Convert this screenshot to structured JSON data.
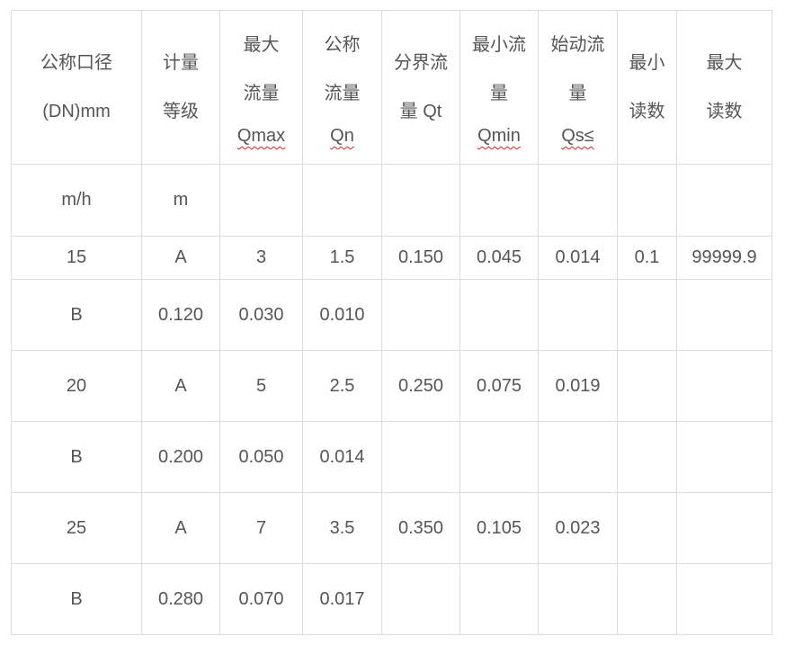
{
  "header": [
    {
      "lines": [
        "公称口径",
        "(DN)mm"
      ]
    },
    {
      "lines": [
        "计量",
        "等级"
      ]
    },
    {
      "lines": [
        "最大",
        "流量",
        "Qmax"
      ],
      "squiggle": 2
    },
    {
      "lines": [
        "公称",
        "流量",
        "Qn"
      ],
      "squiggle": 2
    },
    {
      "lines": [
        "分界流",
        "量 Qt"
      ]
    },
    {
      "lines": [
        "最小流",
        "量",
        "Qmin"
      ],
      "squiggle": 2
    },
    {
      "lines": [
        "始动流",
        "量",
        "Qs≤"
      ],
      "squiggle": 2
    },
    {
      "lines": [
        "最小",
        "读数"
      ]
    },
    {
      "lines": [
        "最大",
        "读数"
      ]
    }
  ],
  "rows": [
    [
      "m/h",
      "m",
      "",
      "",
      "",
      "",
      "",
      "",
      ""
    ],
    [
      "15",
      "A",
      "3",
      "1.5",
      "0.150",
      "0.045",
      "0.014",
      "0.1",
      "99999.9"
    ],
    [
      "B",
      "0.120",
      "0.030",
      "0.010",
      "",
      "",
      "",
      "",
      ""
    ],
    [
      "20",
      "A",
      "5",
      "2.5",
      "0.250",
      "0.075",
      "0.019",
      "",
      ""
    ],
    [
      "B",
      "0.200",
      "0.050",
      "0.014",
      "",
      "",
      "",
      "",
      ""
    ],
    [
      "25",
      "A",
      "7",
      "3.5",
      "0.350",
      "0.105",
      "0.023",
      "",
      ""
    ],
    [
      "B",
      "0.280",
      "0.070",
      "0.017",
      "",
      "",
      "",
      "",
      ""
    ]
  ],
  "colors": {
    "text": "#555555",
    "border": "#dcdcdc",
    "spellcheck_underline": "#e02020"
  }
}
